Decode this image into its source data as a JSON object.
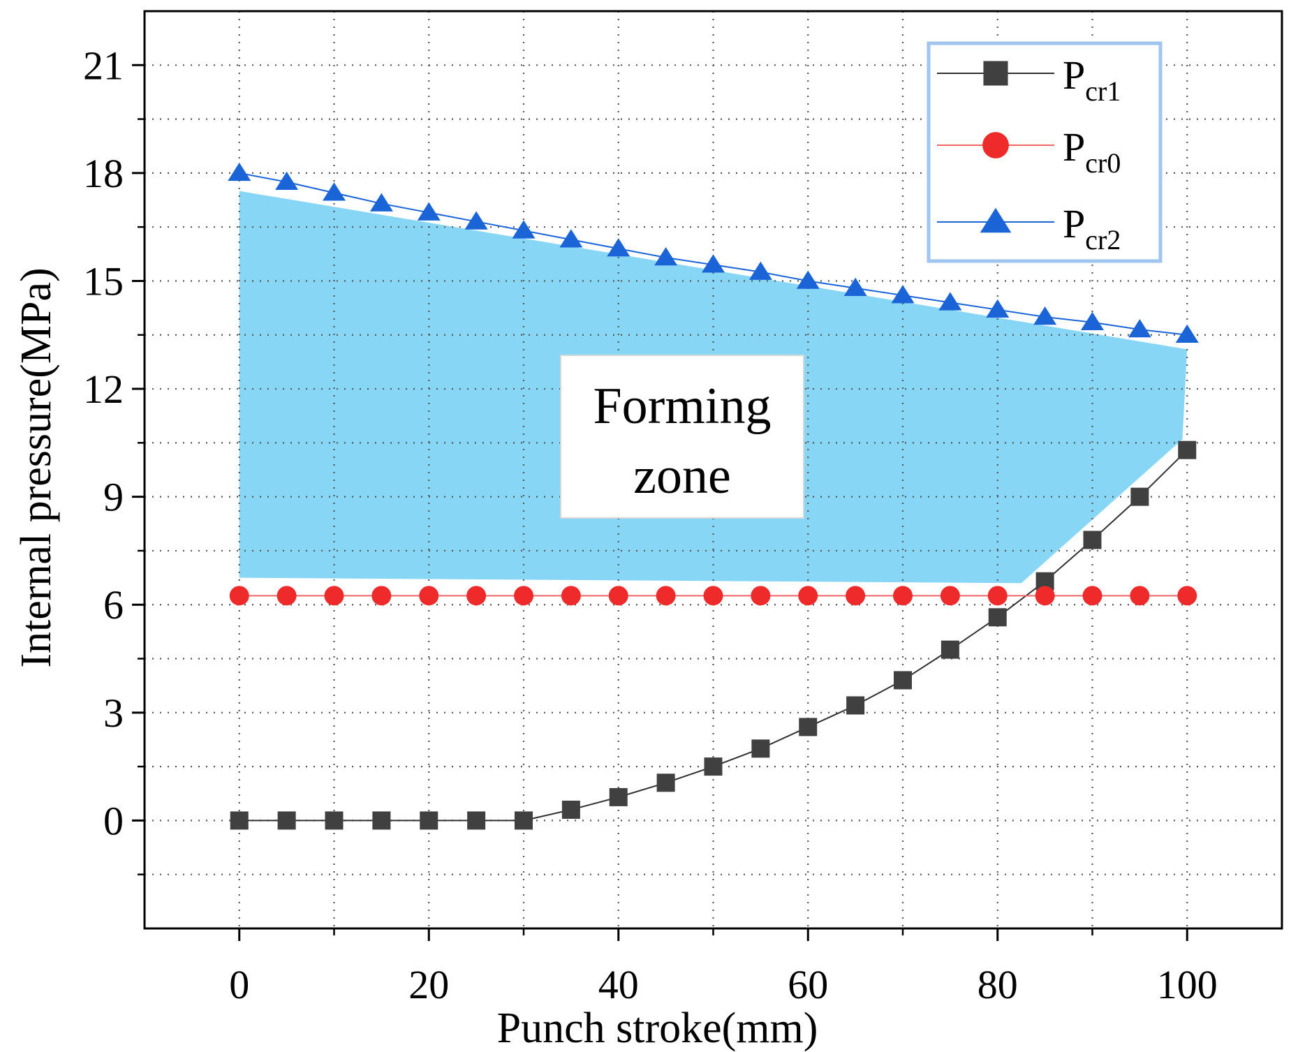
{
  "chart_data": {
    "type": "line",
    "xlabel": "Punch stroke(mm)",
    "ylabel": "Internal pressure(MPa)",
    "xlim": [
      -10,
      110
    ],
    "ylim": [
      -3,
      22.5
    ],
    "xticks": [
      0,
      20,
      40,
      60,
      80,
      100
    ],
    "yticks": [
      0,
      3,
      6,
      9,
      12,
      15,
      18,
      21
    ],
    "grid": true,
    "legend_position": "top-right",
    "x": [
      0,
      5,
      10,
      15,
      20,
      25,
      30,
      35,
      40,
      45,
      50,
      55,
      60,
      65,
      70,
      75,
      80,
      85,
      90,
      95,
      100
    ],
    "series": [
      {
        "name": "P",
        "subscript": "cr1",
        "marker": "square",
        "color": "#404040",
        "line_color": "#303030",
        "values": [
          0,
          0,
          0,
          0,
          0,
          0,
          0,
          0.3,
          0.65,
          1.05,
          1.5,
          2.0,
          2.6,
          3.2,
          3.9,
          4.75,
          5.65,
          6.65,
          7.8,
          9.0,
          10.3
        ]
      },
      {
        "name": "P",
        "subscript": "cr0",
        "marker": "circle",
        "color": "#ee2a2a",
        "line_color": "#ee6666",
        "values": [
          6.25,
          6.25,
          6.25,
          6.25,
          6.25,
          6.25,
          6.25,
          6.25,
          6.25,
          6.25,
          6.25,
          6.25,
          6.25,
          6.25,
          6.25,
          6.25,
          6.25,
          6.25,
          6.25,
          6.25,
          6.25
        ]
      },
      {
        "name": "P",
        "subscript": "cr2",
        "marker": "triangle",
        "color": "#1a64d8",
        "line_color": "#1a64d8",
        "values": [
          18.0,
          17.75,
          17.45,
          17.15,
          16.9,
          16.65,
          16.4,
          16.15,
          15.9,
          15.65,
          15.45,
          15.25,
          15.0,
          14.8,
          14.6,
          14.4,
          14.2,
          14.0,
          13.85,
          13.65,
          13.5
        ]
      }
    ],
    "forming_zone": {
      "label_line1": "Forming",
      "label_line2": "zone",
      "fill_color": "#87d6f5",
      "polygon": [
        [
          0,
          17.5
        ],
        [
          50,
          15.3
        ],
        [
          100,
          13.1
        ],
        [
          99.5,
          10.6
        ],
        [
          82.5,
          6.6
        ],
        [
          0,
          6.75
        ]
      ]
    }
  }
}
